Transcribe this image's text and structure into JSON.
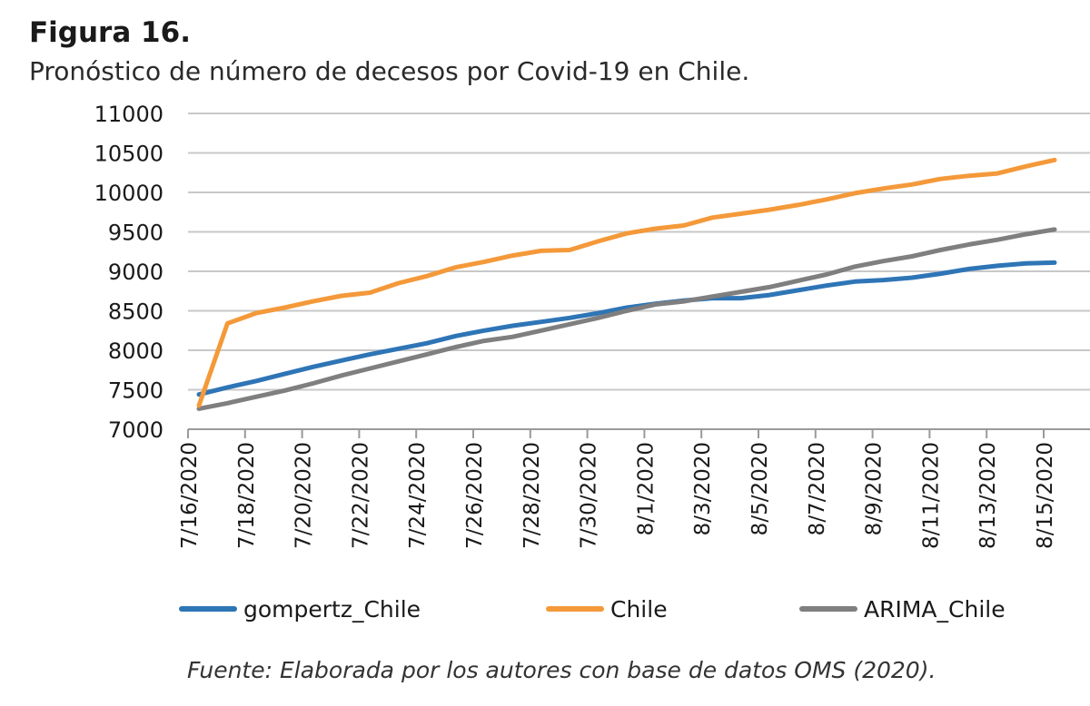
{
  "figure": {
    "label": "Figura 16.",
    "title": "Pronóstico de número de decesos por Covid-19 en Chile.",
    "source": "Fuente: Elaborada por los autores con base de datos OMS (2020)."
  },
  "chart_data": {
    "type": "line",
    "title": "",
    "xlabel": "",
    "ylabel": "",
    "ylim": [
      7000,
      11000
    ],
    "yticks": [
      7000,
      7500,
      8000,
      8500,
      9000,
      9500,
      10000,
      10500,
      11000
    ],
    "grid": true,
    "legend": "bottom",
    "x_tick_labels": [
      "7/16/2020",
      "7/18/2020",
      "7/20/2020",
      "7/22/2020",
      "7/24/2020",
      "7/26/2020",
      "7/28/2020",
      "7/30/2020",
      "8/1/2020",
      "8/3/2020",
      "8/5/2020",
      "8/7/2020",
      "8/9/2020",
      "8/11/2020",
      "8/13/2020",
      "8/15/2020"
    ],
    "x": [
      "7/16/2020",
      "7/17/2020",
      "7/18/2020",
      "7/19/2020",
      "7/20/2020",
      "7/21/2020",
      "7/22/2020",
      "7/23/2020",
      "7/24/2020",
      "7/25/2020",
      "7/26/2020",
      "7/27/2020",
      "7/28/2020",
      "7/29/2020",
      "7/30/2020",
      "7/31/2020",
      "8/1/2020",
      "8/2/2020",
      "8/3/2020",
      "8/4/2020",
      "8/5/2020",
      "8/6/2020",
      "8/7/2020",
      "8/8/2020",
      "8/9/2020",
      "8/10/2020",
      "8/11/2020",
      "8/12/2020",
      "8/13/2020",
      "8/14/2020",
      "8/15/2020"
    ],
    "series": [
      {
        "name": "gompertz_Chile",
        "color": "#2e75b6",
        "values": [
          7440,
          7530,
          7610,
          7700,
          7790,
          7870,
          7950,
          8020,
          8090,
          8180,
          8250,
          8310,
          8360,
          8410,
          8470,
          8540,
          8590,
          8630,
          8660,
          8660,
          8700,
          8760,
          8820,
          8870,
          8890,
          8920,
          8970,
          9030,
          9070,
          9100,
          9110
        ]
      },
      {
        "name": "Chile",
        "color": "#f4993a",
        "values": [
          7300,
          8340,
          8470,
          8540,
          8620,
          8690,
          8730,
          8850,
          8940,
          9050,
          9120,
          9200,
          9260,
          9270,
          9380,
          9480,
          9540,
          9580,
          9680,
          9730,
          9780,
          9840,
          9910,
          9990,
          10050,
          10100,
          10170,
          10210,
          10240,
          10330,
          10410
        ]
      },
      {
        "name": "ARIMA_Chile",
        "color": "#7f7f7f",
        "values": [
          7260,
          7330,
          7410,
          7490,
          7580,
          7680,
          7770,
          7860,
          7950,
          8040,
          8120,
          8170,
          8250,
          8330,
          8410,
          8500,
          8580,
          8620,
          8680,
          8740,
          8800,
          8880,
          8960,
          9060,
          9130,
          9190,
          9270,
          9340,
          9400,
          9470,
          9530
        ]
      }
    ]
  }
}
